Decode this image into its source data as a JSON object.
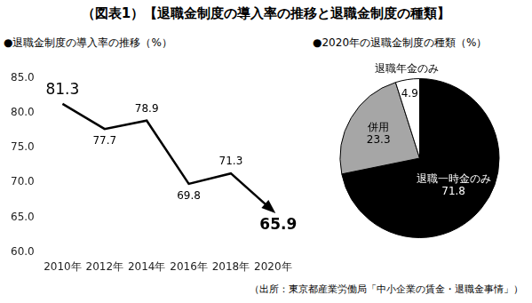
{
  "title": "（図表1）【退職金制度の導入率の推移と退職金制度の種類】",
  "source": "（出所：東京都産業労働局「中小企業の賃金・退職金事情」）",
  "chart_data": [
    {
      "type": "line",
      "title": "●退職金制度の導入率の推移（%）",
      "categories": [
        "2010年",
        "2012年",
        "2014年",
        "2016年",
        "2018年",
        "2020年"
      ],
      "values": [
        81.3,
        77.7,
        78.9,
        69.8,
        71.3,
        65.9
      ],
      "color": "#000000",
      "ylim": [
        60,
        85
      ],
      "yticks": [
        {
          "value": 60,
          "label": "60.0"
        },
        {
          "value": 65,
          "label": "65.0"
        },
        {
          "value": 70,
          "label": "70.0"
        },
        {
          "value": 75,
          "label": "75.0"
        },
        {
          "value": 80,
          "label": "80.0"
        },
        {
          "value": 85,
          "label": "85.0"
        }
      ],
      "grid": false,
      "data_labels": true
    },
    {
      "type": "pie",
      "title": "●2020年の退職金制度の種類（%）",
      "categories": [
        "退職一時金のみ",
        "併用",
        "退職年金のみ"
      ],
      "values": [
        71.8,
        23.3,
        4.9
      ],
      "colors": [
        "#000000",
        "#a6a6a6",
        "#ffffff"
      ],
      "data_labels": true
    }
  ]
}
